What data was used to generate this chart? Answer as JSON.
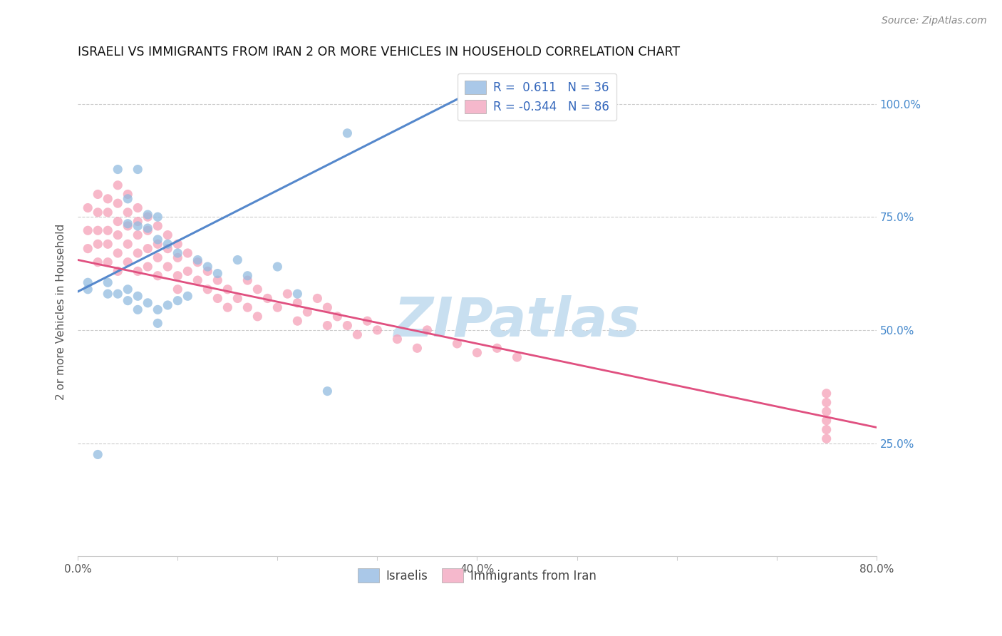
{
  "title": "ISRAELI VS IMMIGRANTS FROM IRAN 2 OR MORE VEHICLES IN HOUSEHOLD CORRELATION CHART",
  "source": "Source: ZipAtlas.com",
  "ylabel": "2 or more Vehicles in Household",
  "xlim": [
    0.0,
    0.8
  ],
  "ylim": [
    0.0,
    1.08
  ],
  "background_color": "#ffffff",
  "grid_color": "#cccccc",
  "blue_scatter_color": "#92bce0",
  "pink_scatter_color": "#f5a0b8",
  "blue_line_color": "#5588cc",
  "pink_line_color": "#e05080",
  "right_axis_color": "#4488cc",
  "legend_blue_patch": "#aac8e8",
  "legend_pink_patch": "#f5b8cc",
  "legend_text_color": "#333333",
  "legend_num_color": "#3366bb",
  "watermark_color": "#c8dff0",
  "source_color": "#888888",
  "ylabel_color": "#555555",
  "xtick_color": "#555555",
  "blue_R": 0.611,
  "blue_N": 36,
  "pink_R": -0.344,
  "pink_N": 86,
  "blue_line_x0": 0.0,
  "blue_line_y0": 0.585,
  "blue_line_x1": 0.38,
  "blue_line_y1": 1.01,
  "pink_line_x0": 0.0,
  "pink_line_y0": 0.655,
  "pink_line_x1": 0.8,
  "pink_line_y1": 0.285,
  "israelis_x": [
    0.27,
    0.04,
    0.06,
    0.05,
    0.05,
    0.06,
    0.07,
    0.07,
    0.08,
    0.08,
    0.09,
    0.1,
    0.12,
    0.13,
    0.14,
    0.16,
    0.17,
    0.2,
    0.01,
    0.01,
    0.02,
    0.03,
    0.03,
    0.04,
    0.05,
    0.05,
    0.06,
    0.06,
    0.07,
    0.08,
    0.08,
    0.09,
    0.1,
    0.11,
    0.22,
    0.25
  ],
  "israelis_y": [
    0.935,
    0.855,
    0.855,
    0.79,
    0.735,
    0.73,
    0.755,
    0.725,
    0.75,
    0.7,
    0.69,
    0.67,
    0.655,
    0.64,
    0.625,
    0.655,
    0.62,
    0.64,
    0.605,
    0.59,
    0.225,
    0.605,
    0.58,
    0.58,
    0.59,
    0.565,
    0.575,
    0.545,
    0.56,
    0.545,
    0.515,
    0.555,
    0.565,
    0.575,
    0.58,
    0.365
  ],
  "iran_x": [
    0.01,
    0.01,
    0.01,
    0.02,
    0.02,
    0.02,
    0.02,
    0.02,
    0.03,
    0.03,
    0.03,
    0.03,
    0.03,
    0.04,
    0.04,
    0.04,
    0.04,
    0.04,
    0.04,
    0.05,
    0.05,
    0.05,
    0.05,
    0.05,
    0.06,
    0.06,
    0.06,
    0.06,
    0.06,
    0.07,
    0.07,
    0.07,
    0.07,
    0.08,
    0.08,
    0.08,
    0.08,
    0.09,
    0.09,
    0.09,
    0.1,
    0.1,
    0.1,
    0.1,
    0.11,
    0.11,
    0.12,
    0.12,
    0.13,
    0.13,
    0.14,
    0.14,
    0.15,
    0.15,
    0.16,
    0.17,
    0.17,
    0.18,
    0.18,
    0.19,
    0.2,
    0.21,
    0.22,
    0.22,
    0.23,
    0.24,
    0.25,
    0.25,
    0.26,
    0.27,
    0.28,
    0.29,
    0.3,
    0.32,
    0.34,
    0.35,
    0.38,
    0.4,
    0.42,
    0.44,
    0.75,
    0.75,
    0.75,
    0.75,
    0.75,
    0.75
  ],
  "iran_y": [
    0.77,
    0.72,
    0.68,
    0.8,
    0.76,
    0.72,
    0.69,
    0.65,
    0.79,
    0.76,
    0.72,
    0.69,
    0.65,
    0.82,
    0.78,
    0.74,
    0.71,
    0.67,
    0.63,
    0.8,
    0.76,
    0.73,
    0.69,
    0.65,
    0.77,
    0.74,
    0.71,
    0.67,
    0.63,
    0.75,
    0.72,
    0.68,
    0.64,
    0.73,
    0.69,
    0.66,
    0.62,
    0.71,
    0.68,
    0.64,
    0.69,
    0.66,
    0.62,
    0.59,
    0.67,
    0.63,
    0.65,
    0.61,
    0.63,
    0.59,
    0.61,
    0.57,
    0.59,
    0.55,
    0.57,
    0.61,
    0.55,
    0.59,
    0.53,
    0.57,
    0.55,
    0.58,
    0.56,
    0.52,
    0.54,
    0.57,
    0.55,
    0.51,
    0.53,
    0.51,
    0.49,
    0.52,
    0.5,
    0.48,
    0.46,
    0.5,
    0.47,
    0.45,
    0.46,
    0.44,
    0.26,
    0.28,
    0.3,
    0.32,
    0.34,
    0.36
  ]
}
